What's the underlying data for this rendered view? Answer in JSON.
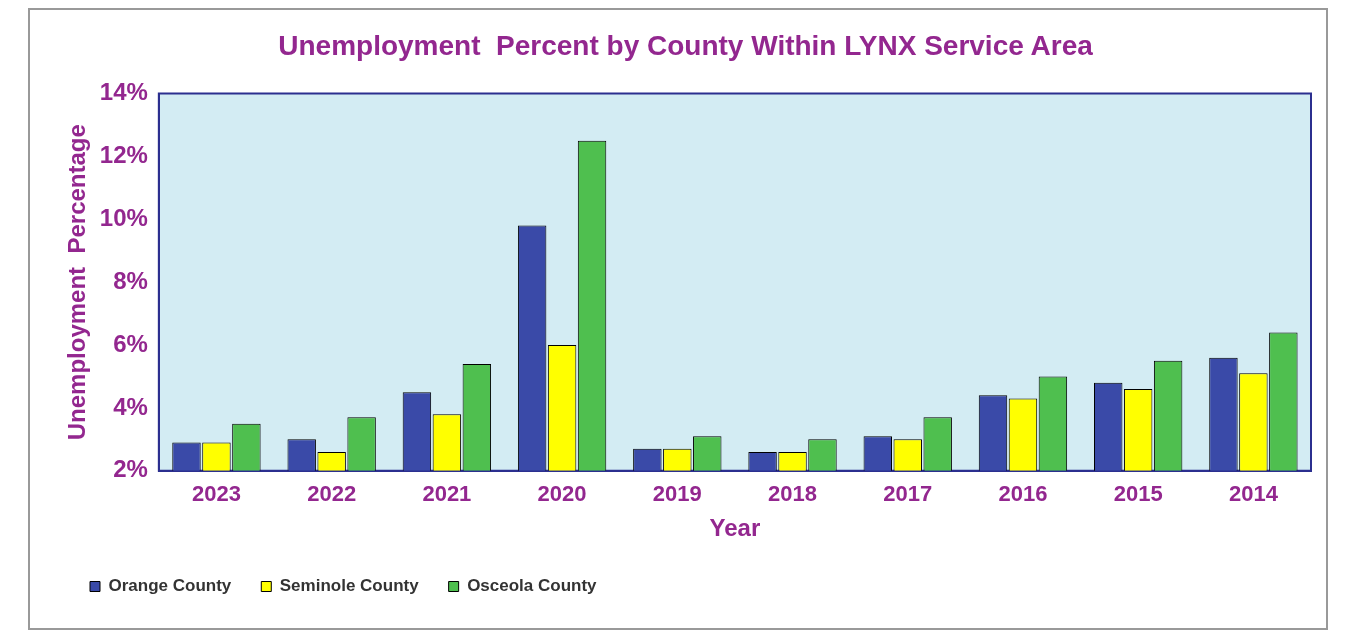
{
  "chart_data": {
    "type": "bar",
    "title": "Unemployment  Percent by County Within LYNX Service Area",
    "xlabel": "Year",
    "ylabel": "Unemployment  Percentage",
    "categories": [
      "2023",
      "2022",
      "2021",
      "2020",
      "2019",
      "2018",
      "2017",
      "2016",
      "2015",
      "2014"
    ],
    "series": [
      {
        "name": "Orange County",
        "color": "#3a4aa8",
        "values": [
          2.9,
          3.0,
          4.5,
          9.8,
          2.7,
          2.6,
          3.1,
          4.4,
          4.8,
          5.6
        ]
      },
      {
        "name": "Seminole County",
        "color": "#ffff00",
        "values": [
          2.9,
          2.6,
          3.8,
          6.0,
          2.7,
          2.6,
          3.0,
          4.3,
          4.6,
          5.1
        ]
      },
      {
        "name": "Osceola County",
        "color": "#4fbf4f",
        "values": [
          3.5,
          3.7,
          5.4,
          12.5,
          3.1,
          3.0,
          3.7,
          5.0,
          5.5,
          6.4
        ]
      }
    ],
    "ylim": [
      2,
      14
    ],
    "yticks": [
      {
        "value": 2,
        "label": "2%"
      },
      {
        "value": 4,
        "label": "4%"
      },
      {
        "value": 6,
        "label": "6%"
      },
      {
        "value": 8,
        "label": "8%"
      },
      {
        "value": 10,
        "label": "10%"
      },
      {
        "value": 12,
        "label": "12%"
      },
      {
        "value": 14,
        "label": "14%"
      }
    ],
    "grid": false,
    "legend": "bottom"
  }
}
